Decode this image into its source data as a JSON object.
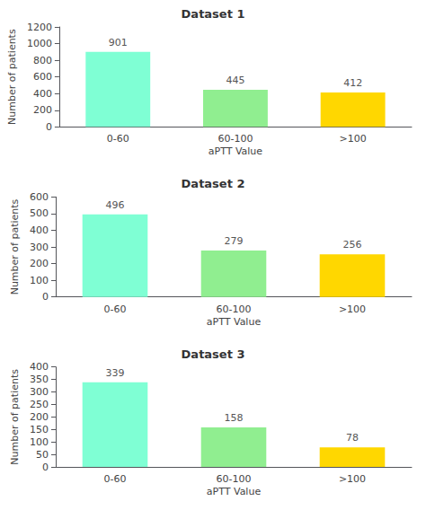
{
  "chart_data": [
    {
      "type": "bar",
      "title": "Dataset 1",
      "categories": [
        "0-60",
        "60-100",
        ">100"
      ],
      "values": [
        901,
        445,
        412
      ],
      "colors": [
        "#7FFFD4",
        "#90EE90",
        "#FFD700"
      ],
      "xlabel": "aPTT Value",
      "ylabel": "Number of patients",
      "ylim": [
        0,
        1200
      ],
      "yticks": [
        0,
        200,
        400,
        600,
        800,
        1000,
        1200
      ],
      "grid": false,
      "data_labels": true
    },
    {
      "type": "bar",
      "title": "Dataset 2",
      "categories": [
        "0-60",
        "60-100",
        ">100"
      ],
      "values": [
        496,
        279,
        256
      ],
      "colors": [
        "#7FFFD4",
        "#90EE90",
        "#FFD700"
      ],
      "xlabel": "aPTT Value",
      "ylabel": "Number of patients",
      "ylim": [
        0,
        600
      ],
      "yticks": [
        0,
        100,
        200,
        300,
        400,
        500,
        600
      ],
      "grid": false,
      "data_labels": true
    },
    {
      "type": "bar",
      "title": "Dataset 3",
      "categories": [
        "0-60",
        "60-100",
        ">100"
      ],
      "values": [
        339,
        158,
        78
      ],
      "colors": [
        "#7FFFD4",
        "#90EE90",
        "#FFD700"
      ],
      "xlabel": "aPTT Value",
      "ylabel": "Number of patients",
      "ylim": [
        0,
        400
      ],
      "yticks": [
        0,
        50,
        100,
        150,
        200,
        250,
        300,
        350,
        400
      ],
      "grid": false,
      "data_labels": true
    }
  ]
}
